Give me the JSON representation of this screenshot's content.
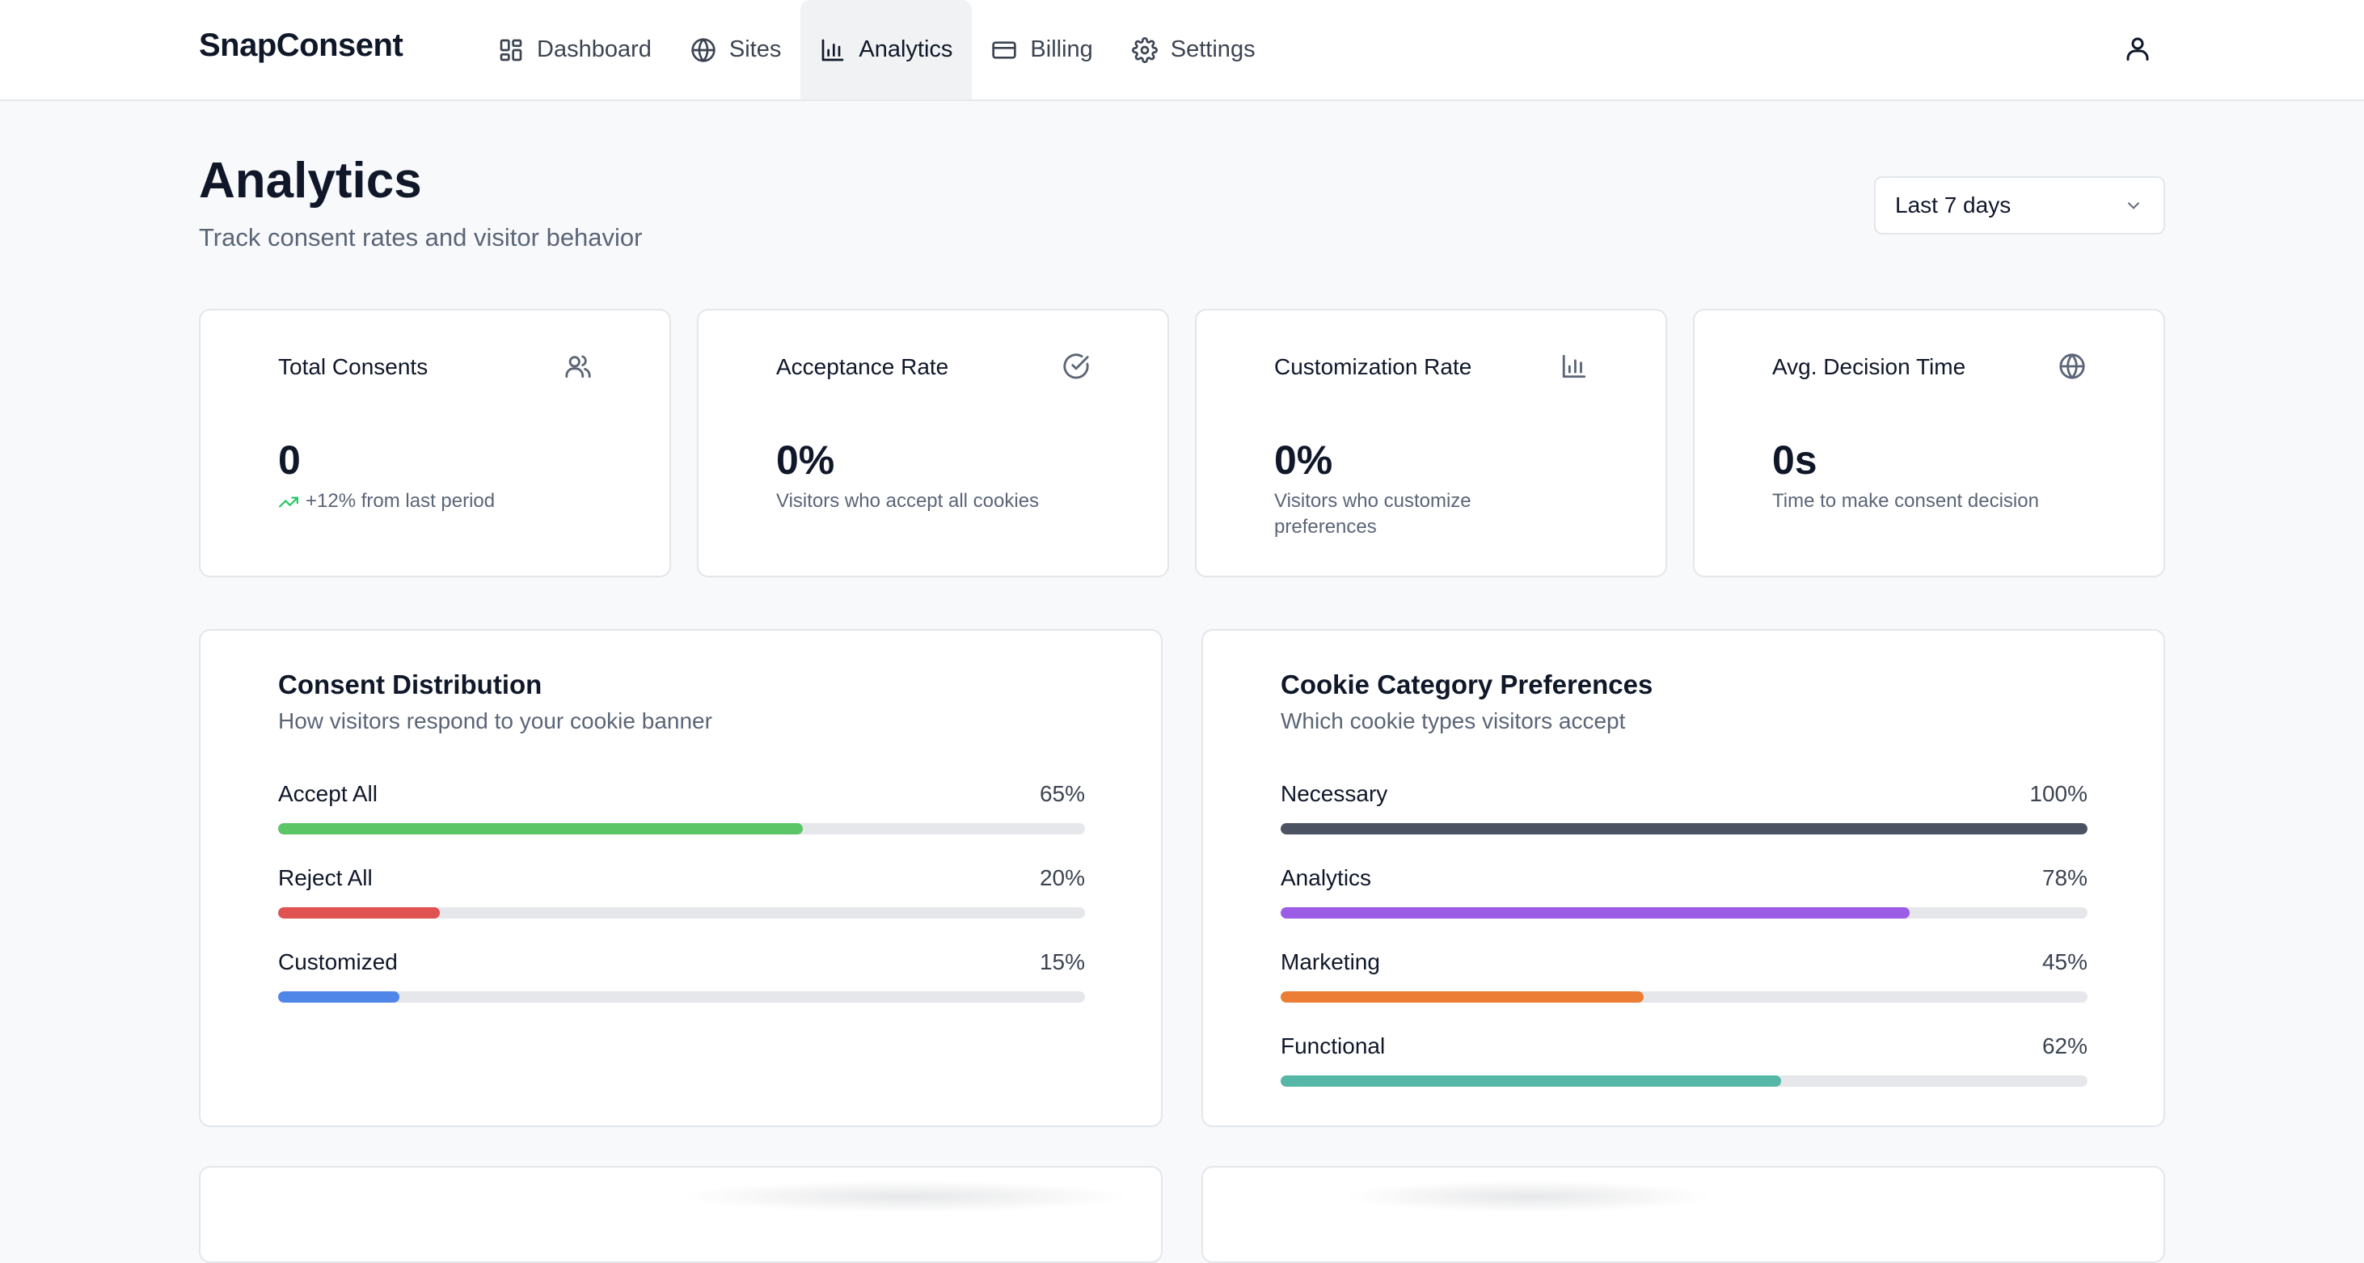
{
  "app": {
    "brand": "SnapConsent"
  },
  "nav": {
    "items": [
      {
        "label": "Dashboard",
        "icon": "dashboard-icon",
        "active": false
      },
      {
        "label": "Sites",
        "icon": "globe-icon",
        "active": false
      },
      {
        "label": "Analytics",
        "icon": "bar-chart-icon",
        "active": true
      },
      {
        "label": "Billing",
        "icon": "credit-card-icon",
        "active": false
      },
      {
        "label": "Settings",
        "icon": "gear-icon",
        "active": false
      }
    ],
    "user_icon": "user-icon"
  },
  "header": {
    "title": "Analytics",
    "subtitle": "Track consent rates and visitor behavior",
    "range_select": {
      "value": "Last 7 days",
      "icon": "chevron-down-icon"
    }
  },
  "stats": [
    {
      "title": "Total Consents",
      "icon": "users-icon",
      "value": "0",
      "note": "+12% from last period",
      "trend_icon": "trending-up-icon"
    },
    {
      "title": "Acceptance Rate",
      "icon": "check-circle-icon",
      "value": "0%",
      "note": "Visitors who accept all cookies"
    },
    {
      "title": "Customization Rate",
      "icon": "bar-chart-icon",
      "value": "0%",
      "note": "Visitors who customize preferences"
    },
    {
      "title": "Avg. Decision Time",
      "icon": "globe-icon",
      "value": "0s",
      "note": "Time to make consent decision"
    }
  ],
  "panels": {
    "distribution": {
      "title": "Consent Distribution",
      "subtitle": "How visitors respond to your cookie banner",
      "rows": [
        {
          "label": "Accept All",
          "value": "65%",
          "fraction": 0.65,
          "color": "#5cc565"
        },
        {
          "label": "Reject All",
          "value": "20%",
          "fraction": 0.2,
          "color": "#df5352"
        },
        {
          "label": "Customized",
          "value": "15%",
          "fraction": 0.15,
          "color": "#4f86e8"
        }
      ]
    },
    "categories": {
      "title": "Cookie Category Preferences",
      "subtitle": "Which cookie types visitors accept",
      "rows": [
        {
          "label": "Necessary",
          "value": "100%",
          "fraction": 1.0,
          "color": "#4b5261"
        },
        {
          "label": "Analytics",
          "value": "78%",
          "fraction": 0.78,
          "color": "#9b5de5"
        },
        {
          "label": "Marketing",
          "value": "45%",
          "fraction": 0.45,
          "color": "#ec7d35"
        },
        {
          "label": "Functional",
          "value": "62%",
          "fraction": 0.62,
          "color": "#55b7a5"
        }
      ]
    }
  }
}
